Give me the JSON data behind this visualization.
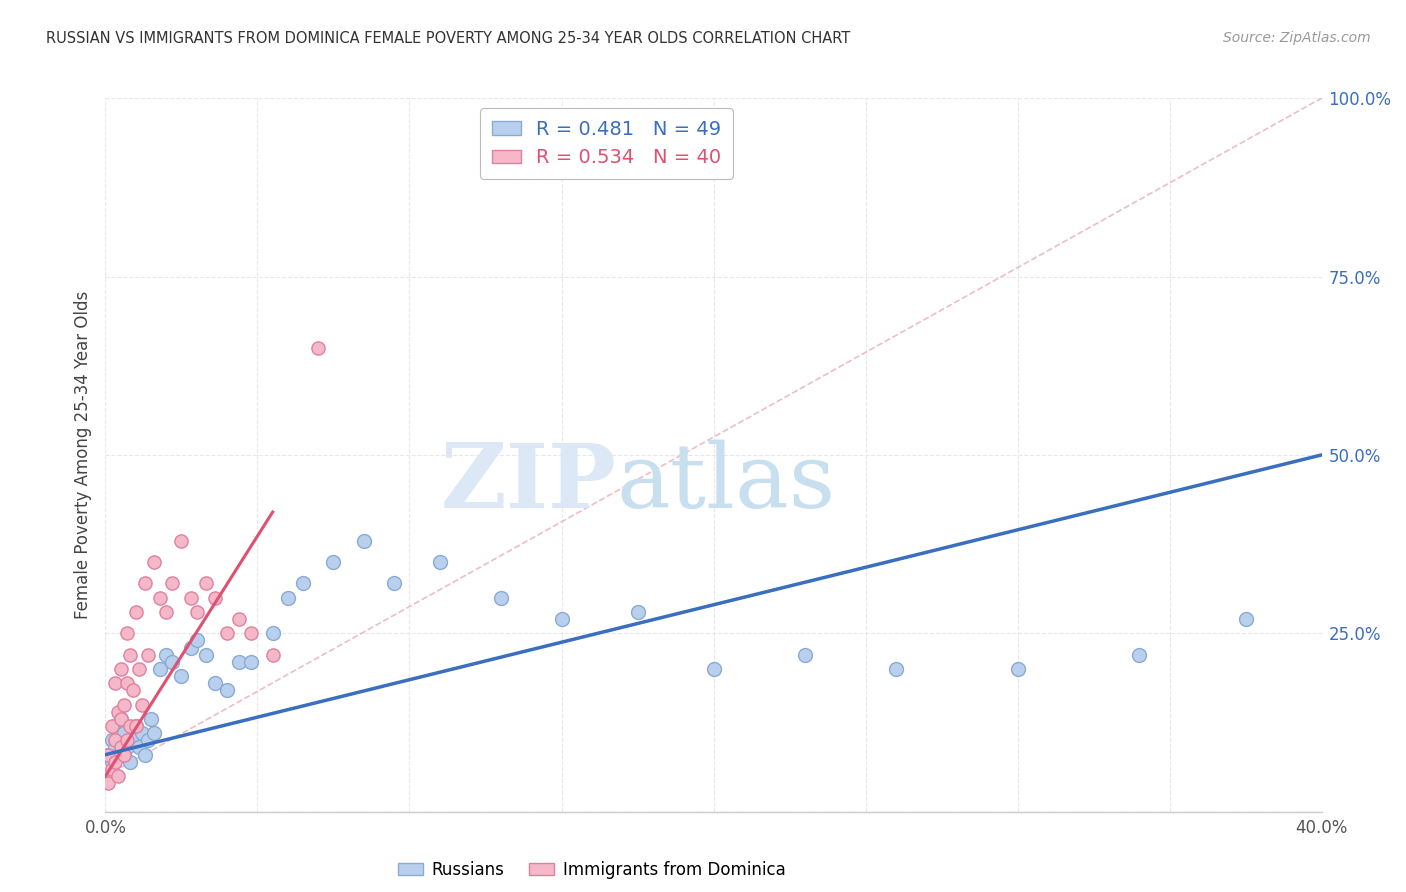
{
  "title": "RUSSIAN VS IMMIGRANTS FROM DOMINICA FEMALE POVERTY AMONG 25-34 YEAR OLDS CORRELATION CHART",
  "source": "Source: ZipAtlas.com",
  "ylabel": "Female Poverty Among 25-34 Year Olds",
  "xlim": [
    0.0,
    0.4
  ],
  "ylim": [
    0.0,
    1.0
  ],
  "xticks": [
    0.0,
    0.05,
    0.1,
    0.15,
    0.2,
    0.25,
    0.3,
    0.35,
    0.4
  ],
  "ytick_positions": [
    0.0,
    0.25,
    0.5,
    0.75,
    1.0
  ],
  "ytick_labels_right": [
    "",
    "25.0%",
    "50.0%",
    "75.0%",
    "100.0%"
  ],
  "russians_R": 0.481,
  "russians_N": 49,
  "dominica_R": 0.534,
  "dominica_N": 40,
  "blue_scatter_color": "#b8d0ed",
  "blue_edge_color": "#8aaad4",
  "pink_scatter_color": "#f5b8c8",
  "pink_edge_color": "#e080a0",
  "blue_line_color": "#3a6ebf",
  "pink_line_color": "#e05070",
  "pink_dash_color": "#e8a0b0",
  "watermark_zip_color": "#d8e8f5",
  "watermark_atlas_color": "#c8dff0",
  "grid_color": "#e8e8e8",
  "title_color": "#333333",
  "source_color": "#999999",
  "axis_label_color": "#444444",
  "tick_label_color_right": "#3a6ebf",
  "russians_x": [
    0.001,
    0.001,
    0.002,
    0.002,
    0.003,
    0.003,
    0.004,
    0.004,
    0.005,
    0.005,
    0.006,
    0.006,
    0.007,
    0.008,
    0.009,
    0.01,
    0.011,
    0.012,
    0.013,
    0.014,
    0.015,
    0.016,
    0.018,
    0.02,
    0.022,
    0.025,
    0.028,
    0.03,
    0.033,
    0.036,
    0.04,
    0.044,
    0.048,
    0.055,
    0.06,
    0.065,
    0.075,
    0.085,
    0.095,
    0.11,
    0.13,
    0.15,
    0.175,
    0.2,
    0.23,
    0.26,
    0.3,
    0.34,
    0.375
  ],
  "russians_y": [
    0.05,
    0.08,
    0.07,
    0.1,
    0.09,
    0.12,
    0.08,
    0.11,
    0.1,
    0.13,
    0.08,
    0.11,
    0.09,
    0.07,
    0.1,
    0.12,
    0.09,
    0.11,
    0.08,
    0.1,
    0.13,
    0.11,
    0.2,
    0.22,
    0.21,
    0.19,
    0.23,
    0.24,
    0.22,
    0.18,
    0.17,
    0.21,
    0.21,
    0.25,
    0.3,
    0.32,
    0.35,
    0.38,
    0.32,
    0.35,
    0.3,
    0.27,
    0.28,
    0.2,
    0.22,
    0.2,
    0.2,
    0.22,
    0.27
  ],
  "dominica_x": [
    0.001,
    0.001,
    0.002,
    0.002,
    0.003,
    0.003,
    0.003,
    0.004,
    0.004,
    0.005,
    0.005,
    0.005,
    0.006,
    0.006,
    0.007,
    0.007,
    0.007,
    0.008,
    0.008,
    0.009,
    0.01,
    0.01,
    0.011,
    0.012,
    0.013,
    0.014,
    0.016,
    0.018,
    0.02,
    0.022,
    0.025,
    0.028,
    0.03,
    0.033,
    0.036,
    0.04,
    0.044,
    0.048,
    0.055,
    0.07
  ],
  "dominica_y": [
    0.04,
    0.08,
    0.06,
    0.12,
    0.07,
    0.1,
    0.18,
    0.05,
    0.14,
    0.09,
    0.13,
    0.2,
    0.08,
    0.15,
    0.1,
    0.18,
    0.25,
    0.12,
    0.22,
    0.17,
    0.12,
    0.28,
    0.2,
    0.15,
    0.32,
    0.22,
    0.35,
    0.3,
    0.28,
    0.32,
    0.38,
    0.3,
    0.28,
    0.32,
    0.3,
    0.25,
    0.27,
    0.25,
    0.22,
    0.65
  ],
  "blue_line_x": [
    0.0,
    0.4
  ],
  "blue_line_y": [
    0.08,
    0.5
  ],
  "pink_solid_line_x": [
    0.0,
    0.055
  ],
  "pink_solid_line_y": [
    0.05,
    0.42
  ],
  "pink_dash_line_x": [
    0.0,
    0.4
  ],
  "pink_dash_line_y": [
    0.05,
    1.0
  ]
}
